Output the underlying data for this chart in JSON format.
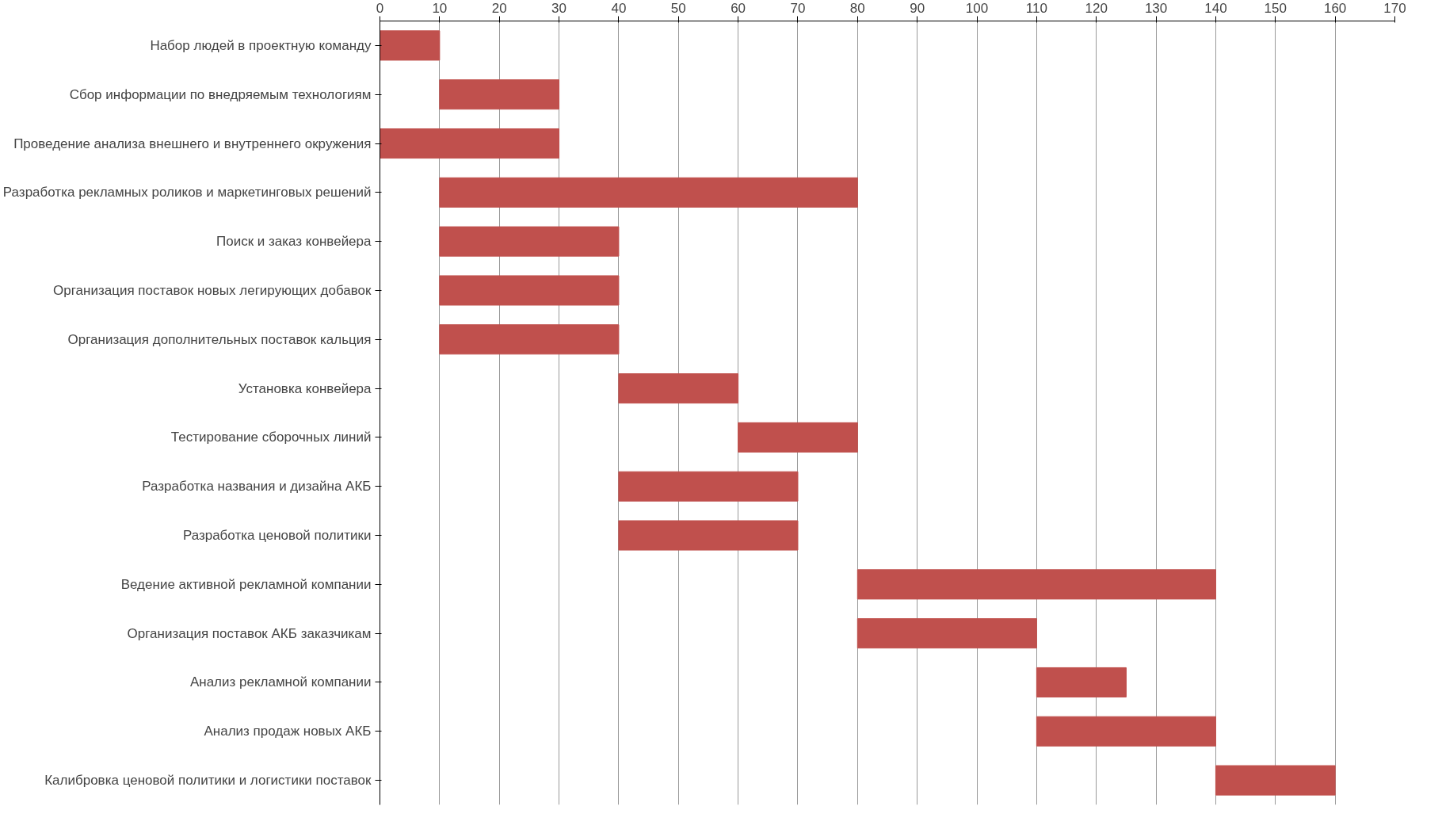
{
  "chart_data": {
    "type": "bar",
    "orientation": "horizontal",
    "categories": [
      "Набор людей в проектную команду",
      "Сбор информации по внедряемым технологиям",
      "Проведение анализа внешнего и внутреннего окружения",
      "Разработка рекламных роликов и маркетинговых решений",
      "Поиск и заказ конвейера",
      "Организация поставок новых легирующих добавок",
      "Организация дополнительных поставок кальция",
      "Установка конвейера",
      "Тестирование сборочных линий",
      "Разработка названия и дизайна АКБ",
      "Разработка ценовой политики",
      "Ведение активной рекламной компании",
      "Организация поставок АКБ заказчикам",
      "Анализ рекламной компании",
      "Анализ продаж новых АКБ",
      "Калибровка ценовой политики и логистики поставок"
    ],
    "base": [
      0,
      10,
      0,
      10,
      10,
      10,
      10,
      40,
      60,
      40,
      40,
      80,
      80,
      110,
      110,
      140
    ],
    "values": [
      10,
      20,
      30,
      70,
      30,
      30,
      30,
      20,
      20,
      30,
      30,
      60,
      30,
      15,
      30,
      20
    ],
    "color": "#c0504d",
    "xlim": [
      0,
      170
    ],
    "xticks": [
      0,
      10,
      20,
      30,
      40,
      50,
      60,
      70,
      80,
      90,
      100,
      110,
      120,
      130,
      140,
      150,
      160,
      170
    ],
    "grid": "x"
  }
}
